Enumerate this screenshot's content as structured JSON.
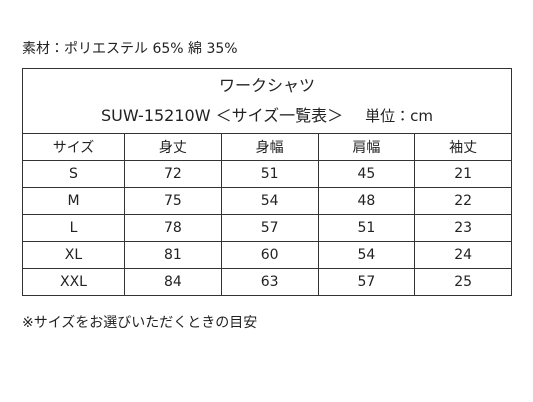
{
  "material": "素材：ポリエステル 65% 綿 35%",
  "table": {
    "title": "ワークシャツ",
    "subtitle": "SUW-15210W ＜サイズ一覧表＞",
    "unit": "単位：cm",
    "header": [
      "サイズ",
      "身丈",
      "身幅",
      "肩幅",
      "袖丈"
    ],
    "rows": [
      [
        "S",
        72,
        51,
        45,
        21
      ],
      [
        "M",
        75,
        54,
        48,
        22
      ],
      [
        "L",
        78,
        57,
        51,
        23
      ],
      [
        "XL",
        81,
        60,
        54,
        24
      ],
      [
        "XXL",
        84,
        63,
        57,
        25
      ]
    ]
  },
  "footnote": "※サイズをお選びいただくときの目安"
}
